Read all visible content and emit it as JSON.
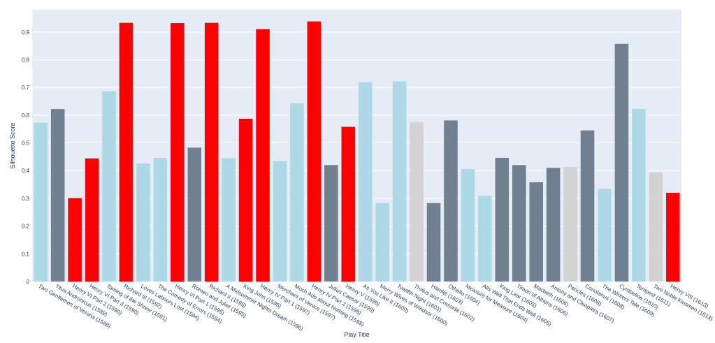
{
  "chart_data": {
    "type": "bar",
    "xlabel": "Play Title",
    "ylabel": "Silhouette Score",
    "ylim": [
      0,
      0.98
    ],
    "yticks": [
      0,
      0.1,
      0.2,
      0.3,
      0.4,
      0.5,
      0.6,
      0.7,
      0.8,
      0.9
    ],
    "ytick_labels": [
      "0",
      "0.1",
      "0.2",
      "0.3",
      "0.4",
      "0.5",
      "0.6",
      "0.7",
      "0.8",
      "0.9"
    ],
    "grid": true,
    "colors": {
      "plot_bg": "#e5ecf6",
      "grid": "#ffffff",
      "lightblue": "#add8e6",
      "slategray": "#708090",
      "red": "#ff0000",
      "lightgray": "#d3d3d3",
      "text": "#2a3f5f"
    },
    "categories": [
      "Two Gentlemen of Verona (1588)",
      "Titus Andronicus (1589)",
      "Henry VI Part 2 (1590)",
      "Henry VI Part 3 (1590)",
      "Taming of the Shrew (1591)",
      "Richard III (1592)",
      "Loves Labours Lost (1594)",
      "The Comedy of Errors (1594)",
      "Henry VI Part 1 (1595)",
      "Romeo and Juliet (1595)",
      "Richard II (1595)",
      "A Midsummer Nights Dream (1596)",
      "King John (1596)",
      "Henry IV Part 1 (1597)",
      "Merchant of Venice (1597)",
      "Much Ado about Nothing (1598)",
      "Henry IV Part 2 (1598)",
      "Julius Caesar (1599)",
      "Henry V (1599)",
      "As You Like It (1600)",
      "Merry Wives of Windsor (1600)",
      "Twelfth Night (1601)",
      "Troilus and Cressida (1602)",
      "Hamlet (1603)",
      "Othello (1604)",
      "Measure for Measure (1604)",
      "Alls Well That Ends Well (1605)",
      "King Lear (1605)",
      "Timon of Athens (1606)",
      "Macbeth (1606)",
      "Antony and Cleopatra (1607)",
      "Pericles (1608)",
      "Coriolanus (1608)",
      "The Winters Tale (1609)",
      "Cymbeline (1610)",
      "Tempest (1611)",
      "Two Noble Kinsmen (1613)",
      "Henry VIII (1613)"
    ],
    "values": [
      0.573,
      0.622,
      0.301,
      0.444,
      0.686,
      0.933,
      0.426,
      0.446,
      0.932,
      0.483,
      0.933,
      0.445,
      0.587,
      0.91,
      0.434,
      0.643,
      0.938,
      0.42,
      0.558,
      0.719,
      0.283,
      0.722,
      0.575,
      0.283,
      0.581,
      0.406,
      0.309,
      0.446,
      0.42,
      0.358,
      0.41,
      0.413,
      0.545,
      0.334,
      0.857,
      0.622,
      0.394,
      0.32
    ],
    "bar_colors": [
      "lightblue",
      "slategray",
      "red",
      "red",
      "lightblue",
      "red",
      "lightblue",
      "lightblue",
      "red",
      "slategray",
      "red",
      "lightblue",
      "red",
      "red",
      "lightblue",
      "lightblue",
      "red",
      "slategray",
      "red",
      "lightblue",
      "lightblue",
      "lightblue",
      "lightgray",
      "slategray",
      "slategray",
      "lightblue",
      "lightblue",
      "slategray",
      "slategray",
      "slategray",
      "slategray",
      "lightgray",
      "slategray",
      "lightblue",
      "slategray",
      "lightblue",
      "lightgray",
      "red"
    ]
  }
}
